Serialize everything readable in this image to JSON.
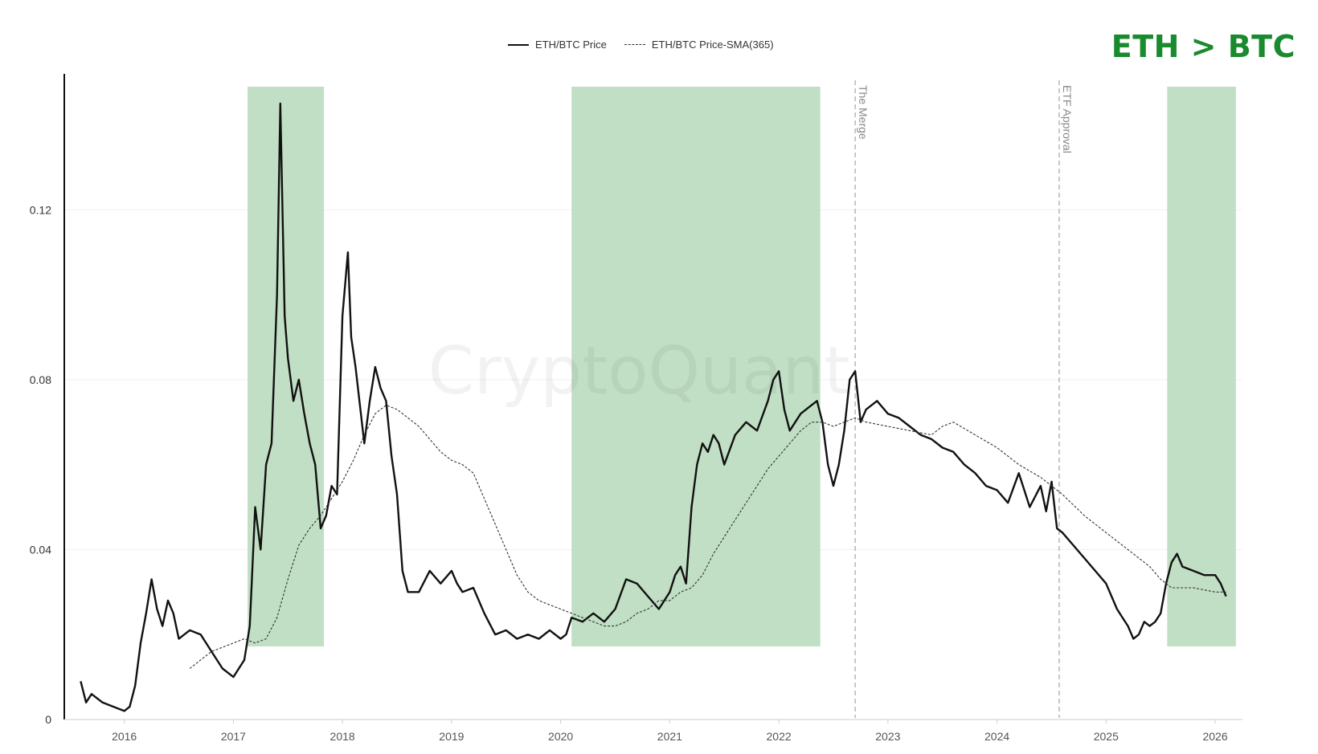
{
  "badge": {
    "text": "ETH > BTC",
    "color": "#1a8a2e"
  },
  "watermark": "CryptoQuant",
  "legend": {
    "price_label": "ETH/BTC Price",
    "sma_label": "ETH/BTC Price-SMA(365)"
  },
  "colors": {
    "shade": "#c1dfc4",
    "price": "#111111",
    "sma": "#333333",
    "event": "#aaaaaa"
  },
  "chart_data": {
    "type": "line",
    "title": "",
    "xlabel": "",
    "ylabel": "",
    "xlim": [
      2015.45,
      2026.25
    ],
    "ylim": [
      0,
      0.152
    ],
    "yticks": [
      {
        "value": 0,
        "label": "0"
      },
      {
        "value": 0.04,
        "label": "0.04"
      },
      {
        "value": 0.08,
        "label": "0.08"
      },
      {
        "value": 0.12,
        "label": "0.12"
      }
    ],
    "xticks": [
      {
        "value": 2016,
        "label": "2016"
      },
      {
        "value": 2017,
        "label": "2017"
      },
      {
        "value": 2018,
        "label": "2018"
      },
      {
        "value": 2019,
        "label": "2019"
      },
      {
        "value": 2020,
        "label": "2020"
      },
      {
        "value": 2021,
        "label": "2021"
      },
      {
        "value": 2022,
        "label": "2022"
      },
      {
        "value": 2023,
        "label": "2023"
      },
      {
        "value": 2024,
        "label": "2024"
      },
      {
        "value": 2025,
        "label": "2025"
      },
      {
        "value": 2026,
        "label": "2026"
      }
    ],
    "shaded_regions": [
      {
        "start": 2017.13,
        "end": 2017.83
      },
      {
        "start": 2020.1,
        "end": 2022.38
      },
      {
        "start": 2025.56,
        "end": 2026.19
      }
    ],
    "events": [
      {
        "x": 2022.7,
        "label": "The Merge"
      },
      {
        "x": 2024.57,
        "label": "ETF Approval"
      }
    ],
    "series": [
      {
        "name": "ETH/BTC Price",
        "style": "solid",
        "x": [
          2015.6,
          2015.65,
          2015.7,
          2015.8,
          2015.9,
          2016.0,
          2016.05,
          2016.1,
          2016.15,
          2016.2,
          2016.25,
          2016.3,
          2016.35,
          2016.4,
          2016.45,
          2016.5,
          2016.55,
          2016.6,
          2016.7,
          2016.8,
          2016.9,
          2017.0,
          2017.05,
          2017.1,
          2017.15,
          2017.2,
          2017.25,
          2017.3,
          2017.35,
          2017.4,
          2017.43,
          2017.45,
          2017.47,
          2017.5,
          2017.55,
          2017.6,
          2017.65,
          2017.7,
          2017.75,
          2017.8,
          2017.85,
          2017.9,
          2017.95,
          2018.0,
          2018.05,
          2018.08,
          2018.12,
          2018.2,
          2018.25,
          2018.3,
          2018.35,
          2018.4,
          2018.45,
          2018.5,
          2018.55,
          2018.6,
          2018.7,
          2018.8,
          2018.9,
          2019.0,
          2019.05,
          2019.1,
          2019.2,
          2019.3,
          2019.4,
          2019.5,
          2019.6,
          2019.7,
          2019.8,
          2019.9,
          2020.0,
          2020.05,
          2020.1,
          2020.2,
          2020.3,
          2020.4,
          2020.5,
          2020.6,
          2020.7,
          2020.8,
          2020.9,
          2021.0,
          2021.05,
          2021.1,
          2021.15,
          2021.2,
          2021.25,
          2021.3,
          2021.35,
          2021.4,
          2021.45,
          2021.5,
          2021.6,
          2021.7,
          2021.8,
          2021.9,
          2021.95,
          2022.0,
          2022.05,
          2022.1,
          2022.2,
          2022.3,
          2022.35,
          2022.4,
          2022.45,
          2022.5,
          2022.55,
          2022.6,
          2022.65,
          2022.7,
          2022.75,
          2022.8,
          2022.9,
          2023.0,
          2023.1,
          2023.2,
          2023.3,
          2023.4,
          2023.5,
          2023.6,
          2023.7,
          2023.8,
          2023.9,
          2024.0,
          2024.1,
          2024.2,
          2024.3,
          2024.4,
          2024.45,
          2024.5,
          2024.55,
          2024.6,
          2024.7,
          2024.8,
          2024.9,
          2025.0,
          2025.05,
          2025.1,
          2025.15,
          2025.2,
          2025.25,
          2025.3,
          2025.35,
          2025.4,
          2025.45,
          2025.5,
          2025.55,
          2025.6,
          2025.65,
          2025.7,
          2025.8,
          2025.9,
          2026.0,
          2026.05,
          2026.1
        ],
        "y": [
          0.009,
          0.004,
          0.006,
          0.004,
          0.003,
          0.002,
          0.003,
          0.008,
          0.018,
          0.025,
          0.033,
          0.026,
          0.022,
          0.028,
          0.025,
          0.019,
          0.02,
          0.021,
          0.02,
          0.016,
          0.012,
          0.01,
          0.012,
          0.014,
          0.022,
          0.05,
          0.04,
          0.06,
          0.065,
          0.1,
          0.145,
          0.12,
          0.095,
          0.085,
          0.075,
          0.08,
          0.072,
          0.065,
          0.06,
          0.045,
          0.048,
          0.055,
          0.053,
          0.095,
          0.11,
          0.09,
          0.083,
          0.065,
          0.075,
          0.083,
          0.078,
          0.075,
          0.062,
          0.053,
          0.035,
          0.03,
          0.03,
          0.035,
          0.032,
          0.035,
          0.032,
          0.03,
          0.031,
          0.025,
          0.02,
          0.021,
          0.019,
          0.02,
          0.019,
          0.021,
          0.019,
          0.02,
          0.024,
          0.023,
          0.025,
          0.023,
          0.026,
          0.033,
          0.032,
          0.029,
          0.026,
          0.03,
          0.034,
          0.036,
          0.032,
          0.05,
          0.06,
          0.065,
          0.063,
          0.067,
          0.065,
          0.06,
          0.067,
          0.07,
          0.068,
          0.075,
          0.08,
          0.082,
          0.073,
          0.068,
          0.072,
          0.074,
          0.075,
          0.07,
          0.06,
          0.055,
          0.06,
          0.068,
          0.08,
          0.082,
          0.07,
          0.073,
          0.075,
          0.072,
          0.071,
          0.069,
          0.067,
          0.066,
          0.064,
          0.063,
          0.06,
          0.058,
          0.055,
          0.054,
          0.051,
          0.058,
          0.05,
          0.055,
          0.049,
          0.056,
          0.045,
          0.044,
          0.041,
          0.038,
          0.035,
          0.032,
          0.029,
          0.026,
          0.024,
          0.022,
          0.019,
          0.02,
          0.023,
          0.022,
          0.023,
          0.025,
          0.032,
          0.037,
          0.039,
          0.036,
          0.035,
          0.034,
          0.034,
          0.032,
          0.029
        ]
      },
      {
        "name": "ETH/BTC Price-SMA(365)",
        "style": "dashed",
        "x": [
          2016.6,
          2016.8,
          2017.0,
          2017.1,
          2017.2,
          2017.3,
          2017.4,
          2017.5,
          2017.6,
          2017.7,
          2017.8,
          2017.9,
          2018.0,
          2018.1,
          2018.2,
          2018.3,
          2018.4,
          2018.5,
          2018.6,
          2018.7,
          2018.8,
          2018.9,
          2019.0,
          2019.1,
          2019.2,
          2019.3,
          2019.4,
          2019.5,
          2019.6,
          2019.7,
          2019.8,
          2019.9,
          2020.0,
          2020.1,
          2020.2,
          2020.3,
          2020.4,
          2020.5,
          2020.6,
          2020.7,
          2020.8,
          2020.9,
          2021.0,
          2021.1,
          2021.2,
          2021.3,
          2021.4,
          2021.5,
          2021.6,
          2021.7,
          2021.8,
          2021.9,
          2022.0,
          2022.1,
          2022.2,
          2022.3,
          2022.4,
          2022.5,
          2022.6,
          2022.7,
          2022.8,
          2023.0,
          2023.2,
          2023.4,
          2023.5,
          2023.6,
          2023.8,
          2024.0,
          2024.2,
          2024.4,
          2024.5,
          2024.6,
          2024.8,
          2025.0,
          2025.2,
          2025.4,
          2025.5,
          2025.6,
          2025.8,
          2026.0,
          2026.1
        ],
        "y": [
          0.012,
          0.016,
          0.018,
          0.019,
          0.018,
          0.019,
          0.024,
          0.033,
          0.041,
          0.045,
          0.048,
          0.052,
          0.056,
          0.061,
          0.067,
          0.072,
          0.074,
          0.073,
          0.071,
          0.069,
          0.066,
          0.063,
          0.061,
          0.06,
          0.058,
          0.052,
          0.046,
          0.04,
          0.034,
          0.03,
          0.028,
          0.027,
          0.026,
          0.025,
          0.024,
          0.023,
          0.022,
          0.022,
          0.023,
          0.025,
          0.026,
          0.028,
          0.028,
          0.03,
          0.031,
          0.034,
          0.039,
          0.043,
          0.047,
          0.051,
          0.055,
          0.059,
          0.062,
          0.065,
          0.068,
          0.07,
          0.07,
          0.069,
          0.07,
          0.071,
          0.07,
          0.069,
          0.068,
          0.067,
          0.069,
          0.07,
          0.067,
          0.064,
          0.06,
          0.057,
          0.055,
          0.053,
          0.048,
          0.044,
          0.04,
          0.036,
          0.033,
          0.031,
          0.031,
          0.03,
          0.03
        ]
      }
    ]
  }
}
